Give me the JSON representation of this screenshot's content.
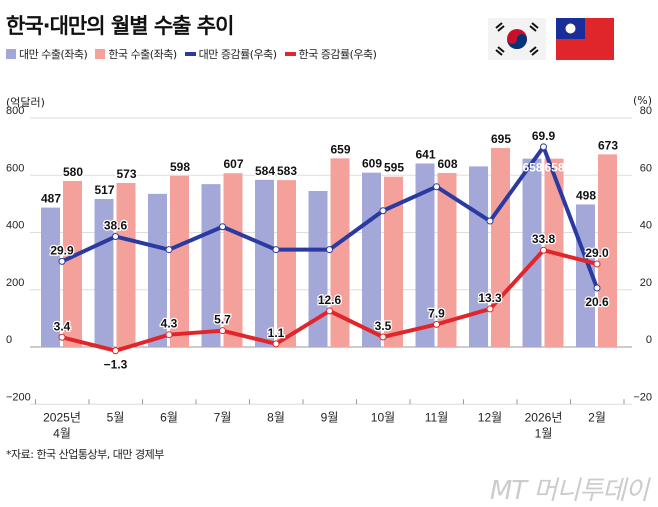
{
  "title": "한국·대만의 월별 수출 추이",
  "legend": [
    {
      "label": "대만 수출(좌축)",
      "color": "#a3a8d8",
      "kind": "bar"
    },
    {
      "label": "한국 수출(좌축)",
      "color": "#f4a19b",
      "kind": "bar"
    },
    {
      "label": "대만 증감률(우축)",
      "color": "#2a3aa0",
      "kind": "line"
    },
    {
      "label": "한국 증감률(우축)",
      "color": "#e0262a",
      "kind": "line"
    }
  ],
  "flags": [
    "korea-flag",
    "taiwan-flag"
  ],
  "source": "*자료: 한국 산업통상부, 대만 경제부",
  "watermark": "MT 머니투데이",
  "chart_data": {
    "type": "bar+line",
    "title": "한국·대만의 월별 수출 추이",
    "left_axis": {
      "label": "(억달러)",
      "range": [
        -200,
        800
      ],
      "ticks": [
        "-200",
        "0",
        "200",
        "400",
        "600",
        "800"
      ]
    },
    "right_axis": {
      "label": "(%)",
      "range": [
        -20,
        80
      ],
      "ticks": [
        "-20",
        "0",
        "20",
        "40",
        "60",
        "80"
      ]
    },
    "grid": true,
    "legend_position": "top-left",
    "categories": [
      [
        "2025년",
        "4월"
      ],
      [
        "5월"
      ],
      [
        "6월"
      ],
      [
        "7월"
      ],
      [
        "8월"
      ],
      [
        "9월"
      ],
      [
        "10월"
      ],
      [
        "11월"
      ],
      [
        "12월"
      ],
      [
        "2026년",
        "1월"
      ],
      [
        "2월"
      ]
    ],
    "series": [
      {
        "name": "대만 수출(좌축)",
        "type": "bar",
        "axis": "left",
        "color": "#a3a8d8",
        "values": [
          487,
          517,
          535,
          569,
          584,
          545,
          609,
          641,
          631,
          658,
          498
        ],
        "labels": [
          "487",
          "517",
          "",
          "",
          "584",
          "",
          "609",
          "641",
          "",
          "658",
          "498"
        ]
      },
      {
        "name": "한국 수출(좌축)",
        "type": "bar",
        "axis": "left",
        "color": "#f4a19b",
        "values": [
          580,
          573,
          598,
          607,
          583,
          659,
          595,
          608,
          695,
          658,
          673
        ],
        "labels": [
          "580",
          "573",
          "598",
          "607",
          "583",
          "659",
          "595",
          "608",
          "695",
          "658",
          "673"
        ]
      },
      {
        "name": "대만 증감률(우축)",
        "type": "line",
        "axis": "right",
        "color": "#2a3aa0",
        "values": [
          29.9,
          38.6,
          34.0,
          42.0,
          34.0,
          34.0,
          47.6,
          56.0,
          44.0,
          69.9,
          20.6
        ],
        "labels": [
          "29.9",
          "38.6",
          "",
          "",
          "",
          "",
          "",
          "",
          "",
          "69.9",
          "20.6"
        ]
      },
      {
        "name": "한국 증감률(우축)",
        "type": "line",
        "axis": "right",
        "color": "#e0262a",
        "values": [
          3.4,
          -1.3,
          4.3,
          5.7,
          1.1,
          12.6,
          3.5,
          7.9,
          13.3,
          33.8,
          29.0
        ],
        "labels": [
          "3.4",
          "-1.3",
          "4.3",
          "5.7",
          "1.1",
          "12.6",
          "3.5",
          "7.9",
          "13.3",
          "33.8",
          "29.0"
        ]
      }
    ]
  }
}
